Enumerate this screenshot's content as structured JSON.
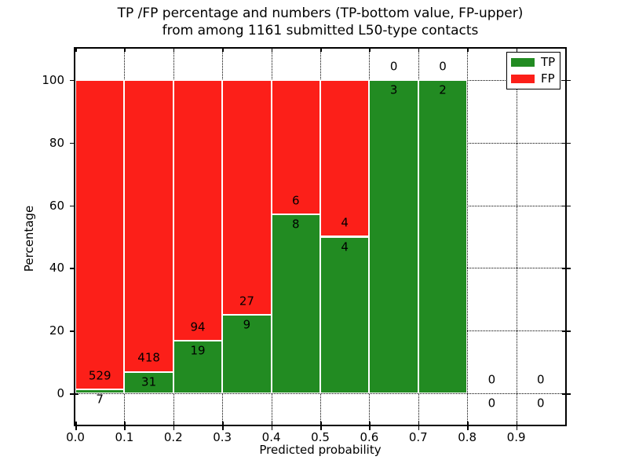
{
  "chart_data": {
    "type": "bar",
    "stacked": true,
    "normalized_to_percent": true,
    "title": "TP /FP percentage and numbers (TP-bottom value, FP-upper)\nfrom among 1161 submitted L50-type contacts",
    "xlabel": "Predicted probability",
    "ylabel": "Percentage",
    "categories": [
      "0.0-0.1",
      "0.1-0.2",
      "0.2-0.3",
      "0.3-0.4",
      "0.4-0.5",
      "0.5-0.6",
      "0.6-0.7",
      "0.7-0.8",
      "0.8-0.9",
      "0.9-1.0"
    ],
    "series": [
      {
        "name": "TP",
        "color": "#228b22",
        "counts": [
          7,
          31,
          19,
          9,
          8,
          4,
          3,
          2,
          0,
          0
        ]
      },
      {
        "name": "FP",
        "color": "#fc1f19",
        "counts": [
          529,
          418,
          94,
          27,
          6,
          4,
          0,
          0,
          0,
          0
        ]
      }
    ],
    "tp_percent_of_bin": [
      1.3,
      6.9,
      16.8,
      25.0,
      57.1,
      50.0,
      100.0,
      100.0,
      0,
      0
    ],
    "total_contacts": 1161,
    "xticks": [
      "0.0",
      "0.1",
      "0.2",
      "0.3",
      "0.4",
      "0.5",
      "0.6",
      "0.7",
      "0.8",
      "0.9"
    ],
    "yticks": [
      "0",
      "20",
      "40",
      "60",
      "80",
      "100"
    ],
    "xlim": [
      0.0,
      1.0
    ],
    "ylim": [
      -10,
      110
    ],
    "bin_width": 0.1,
    "grid": "dotted",
    "legend": {
      "position": "upper-right",
      "entries": [
        {
          "label": "TP",
          "color": "#228b22"
        },
        {
          "label": "FP",
          "color": "#fc1f19"
        }
      ]
    }
  }
}
